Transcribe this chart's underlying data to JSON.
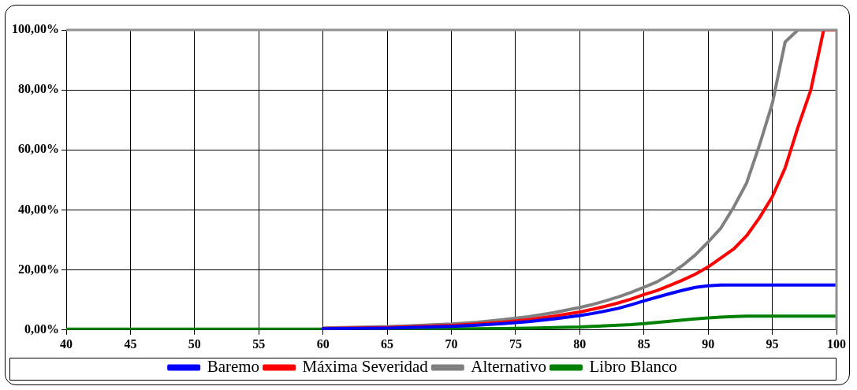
{
  "chart_data": {
    "type": "line",
    "x": [
      40,
      45,
      50,
      55,
      60,
      65,
      70,
      72,
      74,
      76,
      78,
      80,
      81,
      82,
      83,
      84,
      85,
      86,
      87,
      88,
      89,
      90,
      91,
      92,
      93,
      94,
      95,
      96,
      97,
      98,
      99,
      100
    ],
    "series": [
      {
        "name": "Baremo",
        "color": "#0000ff",
        "values": [
          null,
          null,
          null,
          null,
          0.4,
          0.6,
          1.2,
          1.6,
          2.1,
          2.8,
          3.7,
          4.8,
          5.5,
          6.3,
          7.2,
          8.4,
          9.7,
          10.9,
          12.1,
          13.2,
          14.2,
          14.7,
          15,
          15,
          15,
          15,
          15,
          15,
          15,
          15,
          15,
          15
        ]
      },
      {
        "name": "Máxima Severidad",
        "color": "#ff0000",
        "values": [
          null,
          null,
          null,
          null,
          0.5,
          0.8,
          1.5,
          2,
          2.6,
          3.4,
          4.6,
          6,
          6.9,
          7.9,
          9,
          10.3,
          11.8,
          13.1,
          14.8,
          16.6,
          18.6,
          21,
          24,
          27,
          31.4,
          37.4,
          44.4,
          54,
          67.6,
          80,
          100,
          100
        ]
      },
      {
        "name": "Alternativo",
        "color": "#808080",
        "values": [
          null,
          null,
          null,
          null,
          0.7,
          1.1,
          2,
          2.6,
          3.4,
          4.4,
          5.8,
          7.5,
          8.5,
          9.7,
          11,
          12.5,
          14.2,
          16,
          18.5,
          21.5,
          25,
          29.3,
          34,
          41,
          49,
          61.6,
          75.5,
          96,
          100,
          100,
          100,
          100
        ]
      },
      {
        "name": "Libro Blanco",
        "color": "#008000",
        "values": [
          0.3,
          0.3,
          0.3,
          0.3,
          0.3,
          0.3,
          0.4,
          0.4,
          0.5,
          0.6,
          0.8,
          1,
          1.2,
          1.4,
          1.6,
          1.8,
          2.1,
          2.5,
          2.9,
          3.3,
          3.7,
          4,
          4.3,
          4.5,
          4.6,
          4.6,
          4.6,
          4.6,
          4.6,
          4.6,
          4.6,
          4.6
        ]
      }
    ],
    "xlim": [
      40,
      100
    ],
    "xticks": [
      40,
      45,
      50,
      55,
      60,
      65,
      70,
      75,
      80,
      85,
      90,
      95,
      100
    ],
    "ylim": [
      0,
      100
    ],
    "yticks": [
      {
        "value": 0,
        "label": "0,00%"
      },
      {
        "value": 20,
        "label": "20,00%"
      },
      {
        "value": 40,
        "label": "40,00%"
      },
      {
        "value": 60,
        "label": "60,00%"
      },
      {
        "value": 80,
        "label": "80,00%"
      },
      {
        "value": 100,
        "label": "100,00%"
      }
    ],
    "grid": true,
    "legend": "bottom",
    "marker": "none",
    "line_style": "solid"
  }
}
